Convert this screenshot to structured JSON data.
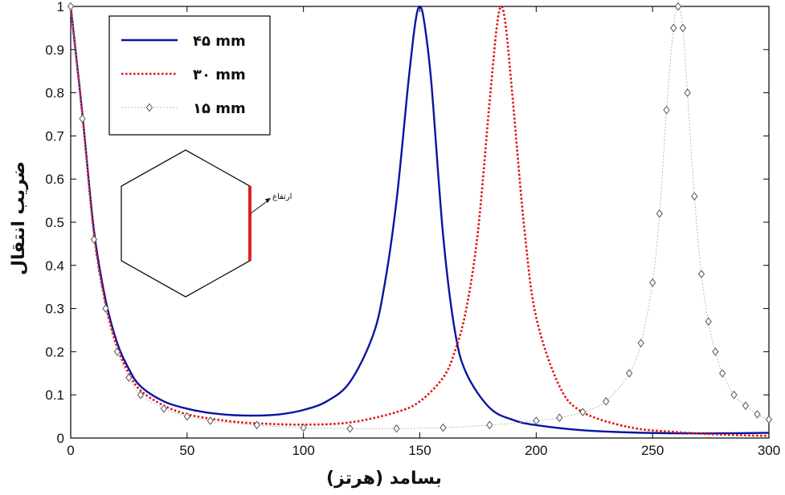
{
  "chart_data": {
    "type": "line",
    "xlabel": "بسامد (هرتز)",
    "ylabel": "ضریب انتقال",
    "xlim": [
      0,
      300
    ],
    "ylim": [
      0,
      1
    ],
    "xticks": [
      0,
      50,
      100,
      150,
      200,
      250,
      300
    ],
    "yticks": [
      0,
      0.1,
      0.2,
      0.3,
      0.4,
      0.5,
      0.6,
      0.7,
      0.8,
      0.9,
      1
    ],
    "grid": false,
    "legend_position": "top-left",
    "series": [
      {
        "name": "۴۵ mm",
        "style": "solid",
        "color": "#0a14a0",
        "x": [
          0,
          5,
          10,
          15,
          20,
          25,
          30,
          40,
          50,
          60,
          70,
          80,
          90,
          100,
          110,
          120,
          130,
          135,
          140,
          145,
          148,
          150,
          152,
          155,
          160,
          165,
          170,
          180,
          190,
          200,
          220,
          240,
          260,
          280,
          300
        ],
        "values": [
          1.0,
          0.75,
          0.48,
          0.32,
          0.22,
          0.16,
          0.12,
          0.085,
          0.068,
          0.058,
          0.053,
          0.052,
          0.055,
          0.065,
          0.085,
          0.13,
          0.24,
          0.36,
          0.55,
          0.82,
          0.96,
          1.0,
          0.96,
          0.82,
          0.47,
          0.25,
          0.15,
          0.07,
          0.042,
          0.03,
          0.018,
          0.013,
          0.011,
          0.011,
          0.012
        ]
      },
      {
        "name": "۳۰ mm",
        "style": "dotted",
        "color": "#e01010",
        "x": [
          0,
          5,
          10,
          15,
          20,
          25,
          30,
          40,
          50,
          60,
          70,
          80,
          100,
          120,
          140,
          150,
          160,
          165,
          170,
          175,
          180,
          183,
          185,
          187,
          190,
          195,
          200,
          210,
          220,
          240,
          260,
          280,
          300
        ],
        "values": [
          1.0,
          0.75,
          0.47,
          0.31,
          0.21,
          0.15,
          0.11,
          0.075,
          0.055,
          0.045,
          0.038,
          0.034,
          0.031,
          0.036,
          0.06,
          0.085,
          0.14,
          0.2,
          0.3,
          0.48,
          0.78,
          0.95,
          1.0,
          0.95,
          0.78,
          0.48,
          0.28,
          0.12,
          0.06,
          0.025,
          0.014,
          0.008,
          0.005
        ]
      },
      {
        "name": "۱۵ mm",
        "style": "markers",
        "marker": "diamond",
        "color": "#555555",
        "x": [
          0,
          5,
          10,
          15,
          20,
          25,
          30,
          40,
          50,
          60,
          80,
          100,
          120,
          140,
          160,
          180,
          200,
          210,
          220,
          230,
          240,
          245,
          250,
          253,
          256,
          259,
          261,
          263,
          265,
          268,
          271,
          274,
          277,
          280,
          285,
          290,
          295,
          300
        ],
        "values": [
          1.0,
          0.74,
          0.46,
          0.3,
          0.2,
          0.14,
          0.1,
          0.068,
          0.05,
          0.04,
          0.03,
          0.024,
          0.022,
          0.022,
          0.024,
          0.03,
          0.04,
          0.047,
          0.06,
          0.085,
          0.15,
          0.22,
          0.36,
          0.52,
          0.76,
          0.95,
          1.0,
          0.95,
          0.8,
          0.56,
          0.38,
          0.27,
          0.2,
          0.15,
          0.1,
          0.075,
          0.055,
          0.043
        ]
      }
    ],
    "inset": {
      "shape": "hexagon",
      "highlight_color": "#e02020",
      "label": "ارتفاع"
    }
  }
}
